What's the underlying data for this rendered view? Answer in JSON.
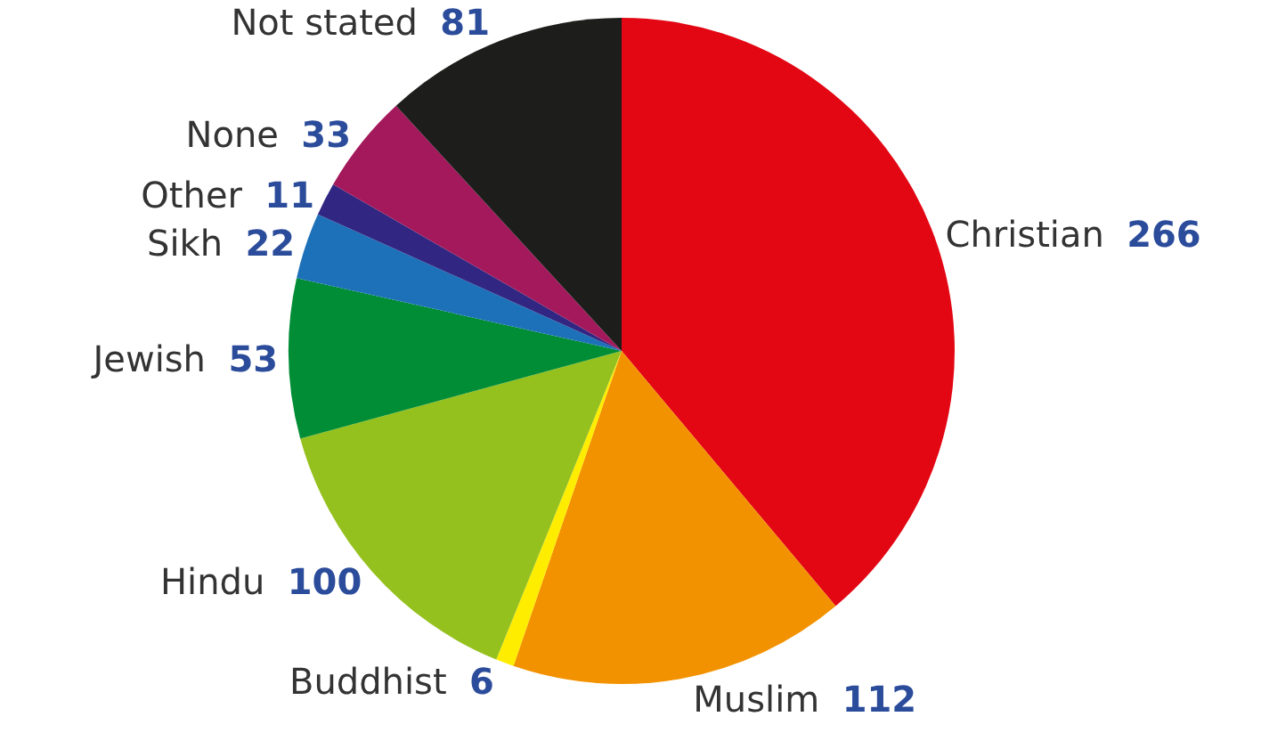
{
  "chart_data": {
    "type": "pie",
    "categories": [
      "Christian",
      "Muslim",
      "Buddhist",
      "Hindu",
      "Jewish",
      "Sikh",
      "Other",
      "None",
      "Not stated"
    ],
    "values": [
      266,
      112,
      6,
      100,
      53,
      22,
      11,
      33,
      81
    ],
    "colors": [
      "#e30613",
      "#f39200",
      "#ffed00",
      "#95c11f",
      "#008d36",
      "#1d71b8",
      "#312783",
      "#a3195b",
      "#1d1d1b"
    ],
    "data_labels": true,
    "legend": false
  }
}
